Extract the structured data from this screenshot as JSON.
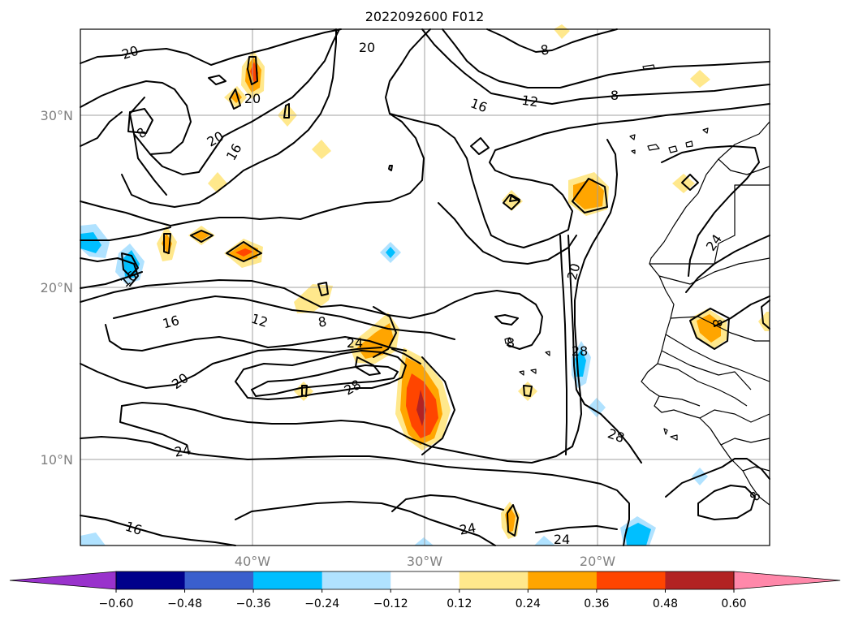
{
  "title": "2022092600 F012",
  "map": {
    "lat_labels": [
      "30°N",
      "20°N",
      "10°N"
    ],
    "lon_labels": [
      "40°W",
      "30°W",
      "20°W"
    ],
    "contour_labels": [
      "20",
      "20",
      "8",
      "16",
      "12",
      "8",
      "20",
      "8",
      "20",
      "16",
      "16",
      "16",
      "12",
      "8",
      "24",
      "28",
      "20",
      "24",
      "8",
      "28",
      "20",
      "24",
      "28",
      "16",
      "24",
      "24",
      "8",
      "8"
    ]
  },
  "colorbar": {
    "ticks": [
      "−0.60",
      "−0.48",
      "−0.36",
      "−0.24",
      "−0.12",
      "0.12",
      "0.24",
      "0.36",
      "0.48",
      "0.60"
    ],
    "colors": [
      "#9932cc",
      "#00008b",
      "#3a5fcd",
      "#00bfff",
      "#b0e2ff",
      "#ffffff",
      "#ffe88c",
      "#ffa500",
      "#ff4500",
      "#b22222",
      "#ff88aa"
    ]
  }
}
